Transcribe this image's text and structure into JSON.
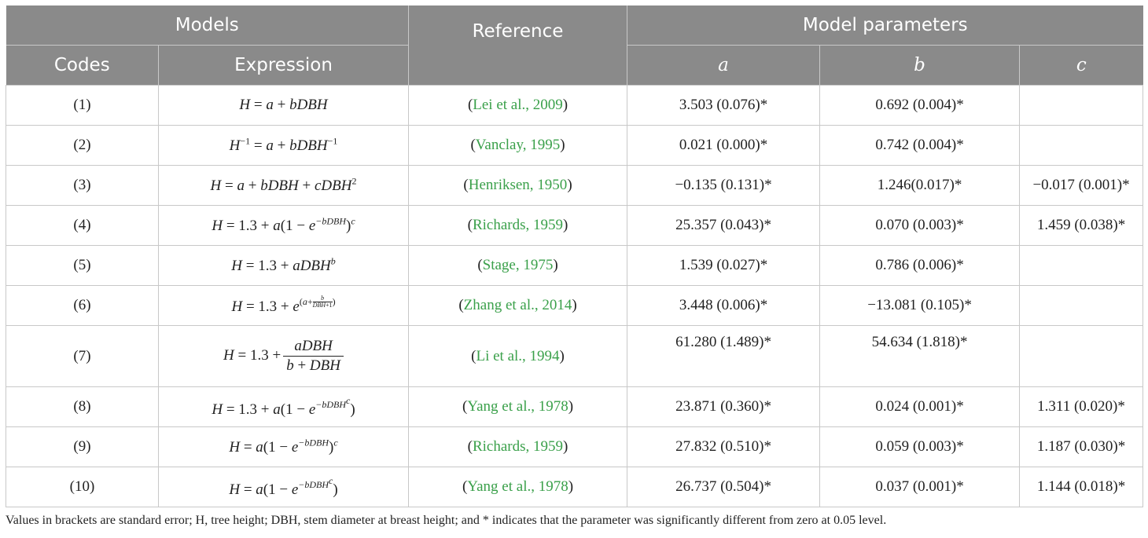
{
  "header": {
    "models": "Models",
    "reference": "Reference",
    "model_parameters": "Model parameters",
    "codes": "Codes",
    "expression": "Expression",
    "a": "a",
    "b": "b",
    "c": "c"
  },
  "rows": [
    {
      "code": "(1)",
      "ref": "Lei et al., 2009",
      "a": "3.503 (0.076)*",
      "b": "0.692 (0.004)*",
      "c": ""
    },
    {
      "code": "(2)",
      "ref": "Vanclay, 1995",
      "a": "0.021 (0.000)*",
      "b": "0.742 (0.004)*",
      "c": ""
    },
    {
      "code": "(3)",
      "ref": "Henriksen, 1950",
      "a": "−0.135 (0.131)*",
      "b": "1.246(0.017)*",
      "c": "−0.017 (0.001)*"
    },
    {
      "code": "(4)",
      "ref": "Richards, 1959",
      "a": "25.357 (0.043)*",
      "b": "0.070 (0.003)*",
      "c": "1.459 (0.038)*"
    },
    {
      "code": "(5)",
      "ref": "Stage, 1975",
      "a": "1.539 (0.027)*",
      "b": "0.786 (0.006)*",
      "c": ""
    },
    {
      "code": "(6)",
      "ref": "Zhang et al., 2014",
      "a": "3.448 (0.006)*",
      "b": "−13.081 (0.105)*",
      "c": ""
    },
    {
      "code": "(7)",
      "ref": "Li et al., 1994",
      "a": "61.280 (1.489)*",
      "b": "54.634 (1.818)*",
      "c": ""
    },
    {
      "code": "(8)",
      "ref": "Yang et al., 1978",
      "a": "23.871 (0.360)*",
      "b": "0.024 (0.001)*",
      "c": "1.311 (0.020)*"
    },
    {
      "code": "(9)",
      "ref": "Richards, 1959",
      "a": "27.832 (0.510)*",
      "b": "0.059 (0.003)*",
      "c": "1.187 (0.030)*"
    },
    {
      "code": "(10)",
      "ref": "Yang et al., 1978",
      "a": "26.737 (0.504)*",
      "b": "0.037 (0.001)*",
      "c": "1.144 (0.018)*"
    }
  ],
  "footnote": "Values in brackets are standard error; H, tree height; DBH, stem diameter at breast height; and * indicates that the parameter was significantly different from zero at 0.05 level."
}
